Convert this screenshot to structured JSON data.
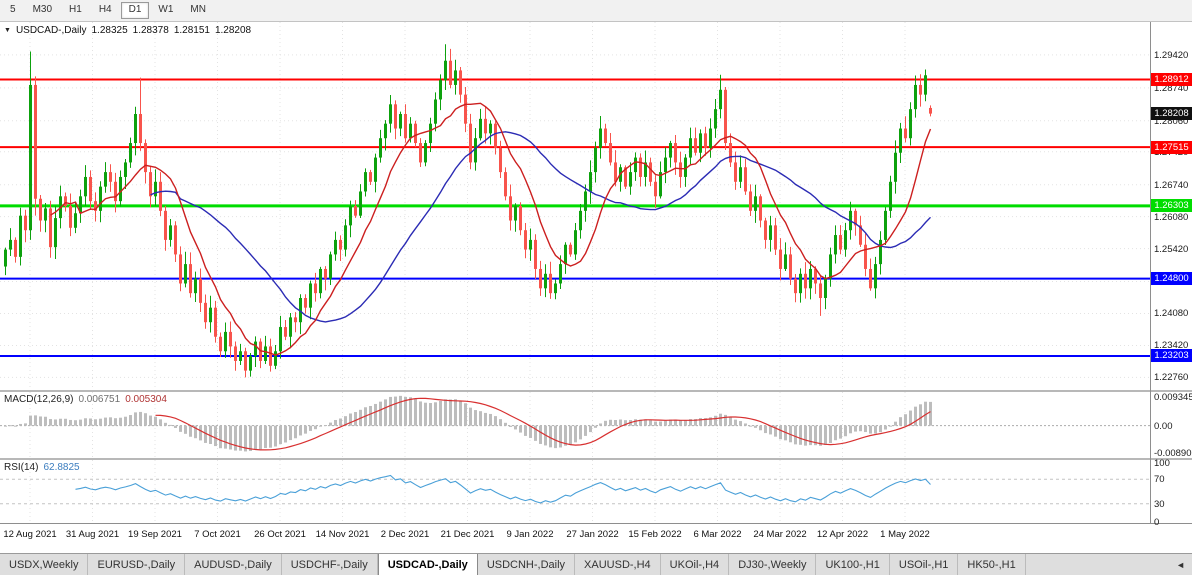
{
  "toolbar": {
    "timeframes": [
      {
        "label": "5",
        "active": false
      },
      {
        "label": "M30",
        "active": false
      },
      {
        "label": "H1",
        "active": false
      },
      {
        "label": "H4",
        "active": false
      },
      {
        "label": "D1",
        "active": true
      },
      {
        "label": "W1",
        "active": false
      },
      {
        "label": "MN",
        "active": false
      }
    ]
  },
  "chart": {
    "title_marker": "▼",
    "symbol_label": "USDCAD-,Daily",
    "ohlc": {
      "open": "1.28325",
      "high": "1.28378",
      "low": "1.28151",
      "close": "1.28208"
    },
    "price_axis": [
      1.2942,
      1.2874,
      1.2806,
      1.2742,
      1.2674,
      1.2608,
      1.2542,
      1.2474,
      1.2408,
      1.2342,
      1.2276
    ],
    "hlines": [
      {
        "price": 1.28912,
        "label": "1.28912",
        "color": "#ff0000",
        "width": 2
      },
      {
        "price": 1.27515,
        "label": "1.27515",
        "color": "#ff0000",
        "width": 2
      },
      {
        "price": 1.26303,
        "label": "1.26303",
        "color": "#00dd00",
        "width": 3
      },
      {
        "price": 1.248,
        "label": "1.24800",
        "color": "#0000ff",
        "width": 2
      },
      {
        "price": 1.23203,
        "label": "1.23203",
        "color": "#0000ff",
        "width": 2
      }
    ],
    "current_price": {
      "value": 1.28208,
      "label": "1.28208",
      "color": "#101010"
    },
    "date_labels": [
      "12 Aug 2021",
      "31 Aug 2021",
      "19 Sep 2021",
      "7 Oct 2021",
      "26 Oct 2021",
      "14 Nov 2021",
      "2 Dec 2021",
      "21 Dec 2021",
      "9 Jan 2022",
      "27 Jan 2022",
      "15 Feb 2022",
      "6 Mar 2022",
      "24 Mar 2022",
      "12 Apr 2022",
      "1 May 2022"
    ],
    "macd": {
      "name": "MACD(12,26,9)",
      "value_main": "0.006751",
      "value_signal": "0.005304",
      "params": {
        "fast": 12,
        "slow": 26,
        "signal": 9
      },
      "axis": [
        {
          "label": "0.009345",
          "value": 0.009345
        },
        {
          "label": "0.00",
          "value": 0
        },
        {
          "label": "-0.008902",
          "value": -0.008902
        }
      ]
    },
    "rsi": {
      "name": "RSI(14)",
      "value": "62.8825",
      "period": 14,
      "levels": [
        70,
        30
      ],
      "axis": [
        {
          "label": "100",
          "value": 100
        },
        {
          "label": "70",
          "value": 70
        },
        {
          "label": "30",
          "value": 30
        },
        {
          "label": "0",
          "value": 0
        }
      ]
    }
  },
  "chart_data": {
    "type": "candlestick",
    "symbol": "USDCAD",
    "timeframe": "Daily",
    "price_range": {
      "top": 1.301,
      "bottom": 1.225
    },
    "first_open": 1.2505,
    "closes": [
      1.254,
      1.256,
      1.2525,
      1.261,
      1.258,
      1.288,
      1.2645,
      1.26,
      1.2625,
      1.2545,
      1.2605,
      1.265,
      1.263,
      1.2585,
      1.2615,
      1.265,
      1.269,
      1.264,
      1.262,
      1.267,
      1.27,
      1.268,
      1.264,
      1.269,
      1.272,
      1.276,
      1.282,
      1.276,
      1.27,
      1.265,
      1.268,
      1.262,
      1.256,
      1.259,
      1.253,
      1.247,
      1.251,
      1.245,
      1.248,
      1.243,
      1.239,
      1.242,
      1.236,
      1.233,
      1.237,
      1.234,
      1.231,
      1.233,
      1.229,
      1.232,
      1.235,
      1.231,
      1.234,
      1.23,
      1.233,
      1.238,
      1.236,
      1.24,
      1.239,
      1.244,
      1.242,
      1.247,
      1.245,
      1.25,
      1.248,
      1.253,
      1.256,
      1.254,
      1.259,
      1.263,
      1.261,
      1.266,
      1.27,
      1.268,
      1.273,
      1.277,
      1.28,
      1.284,
      1.279,
      1.282,
      1.277,
      1.28,
      1.276,
      1.272,
      1.276,
      1.28,
      1.285,
      1.289,
      1.293,
      1.288,
      1.291,
      1.286,
      1.28,
      1.272,
      1.277,
      1.281,
      1.278,
      1.28,
      1.275,
      1.27,
      1.265,
      1.26,
      1.263,
      1.258,
      1.254,
      1.256,
      1.25,
      1.246,
      1.249,
      1.245,
      1.247,
      1.251,
      1.255,
      1.253,
      1.258,
      1.262,
      1.266,
      1.27,
      1.275,
      1.279,
      1.276,
      1.272,
      1.268,
      1.271,
      1.267,
      1.27,
      1.273,
      1.269,
      1.272,
      1.268,
      1.265,
      1.27,
      1.273,
      1.276,
      1.272,
      1.269,
      1.273,
      1.277,
      1.274,
      1.278,
      1.275,
      1.279,
      1.283,
      1.287,
      1.276,
      1.272,
      1.268,
      1.271,
      1.266,
      1.262,
      1.265,
      1.26,
      1.256,
      1.259,
      1.254,
      1.25,
      1.253,
      1.248,
      1.245,
      1.249,
      1.246,
      1.25,
      1.247,
      1.244,
      1.248,
      1.253,
      1.257,
      1.254,
      1.258,
      1.262,
      1.259,
      1.255,
      1.25,
      1.246,
      1.251,
      1.256,
      1.262,
      1.268,
      1.274,
      1.279,
      1.277,
      1.283,
      1.288,
      1.286,
      1.29,
      1.28208
    ],
    "overrides": {
      "5": {
        "high": 1.2949,
        "low": 1.256
      },
      "6": {
        "low": 1.261
      },
      "27": {
        "high": 1.2895
      },
      "48": {
        "low": 1.2276
      },
      "53": {
        "low": 1.2288
      },
      "88": {
        "high": 1.2964
      },
      "143": {
        "high": 1.2901
      },
      "163": {
        "low": 1.2403
      },
      "173": {
        "low": 1.2455
      },
      "184": {
        "high": 1.2912
      },
      "185": {
        "open": 1.28325,
        "high": 1.28378,
        "low": 1.28151
      }
    },
    "ma_fast_period": 10,
    "ma_slow_period": 30
  },
  "colors": {
    "up": "#0da10d",
    "down": "#f8544c",
    "ma_fast": "#cc1f1f",
    "ma_slow": "#2b2bb4",
    "macd_hist": "#bdbdbd",
    "macd_signal": "#d83030",
    "rsi_line": "#4aa0d8",
    "grid": "#e3e3e3",
    "level": "#c4c4c4",
    "zero": "#ababab"
  },
  "tabs": {
    "scroll_left_icon": "◄",
    "items": [
      {
        "label": "USDX,Weekly",
        "active": false
      },
      {
        "label": "EURUSD-,Daily",
        "active": false
      },
      {
        "label": "AUDUSD-,Daily",
        "active": false
      },
      {
        "label": "USDCHF-,Daily",
        "active": false
      },
      {
        "label": "USDCAD-,Daily",
        "active": true
      },
      {
        "label": "USDCNH-,Daily",
        "active": false
      },
      {
        "label": "XAUUSD-,H4",
        "active": false
      },
      {
        "label": "UKOil-,H4",
        "active": false
      },
      {
        "label": "DJ30-,Weekly",
        "active": false
      },
      {
        "label": "UK100-,H1",
        "active": false
      },
      {
        "label": "USOil-,H1",
        "active": false
      },
      {
        "label": "HK50-,H1",
        "active": false
      }
    ]
  }
}
